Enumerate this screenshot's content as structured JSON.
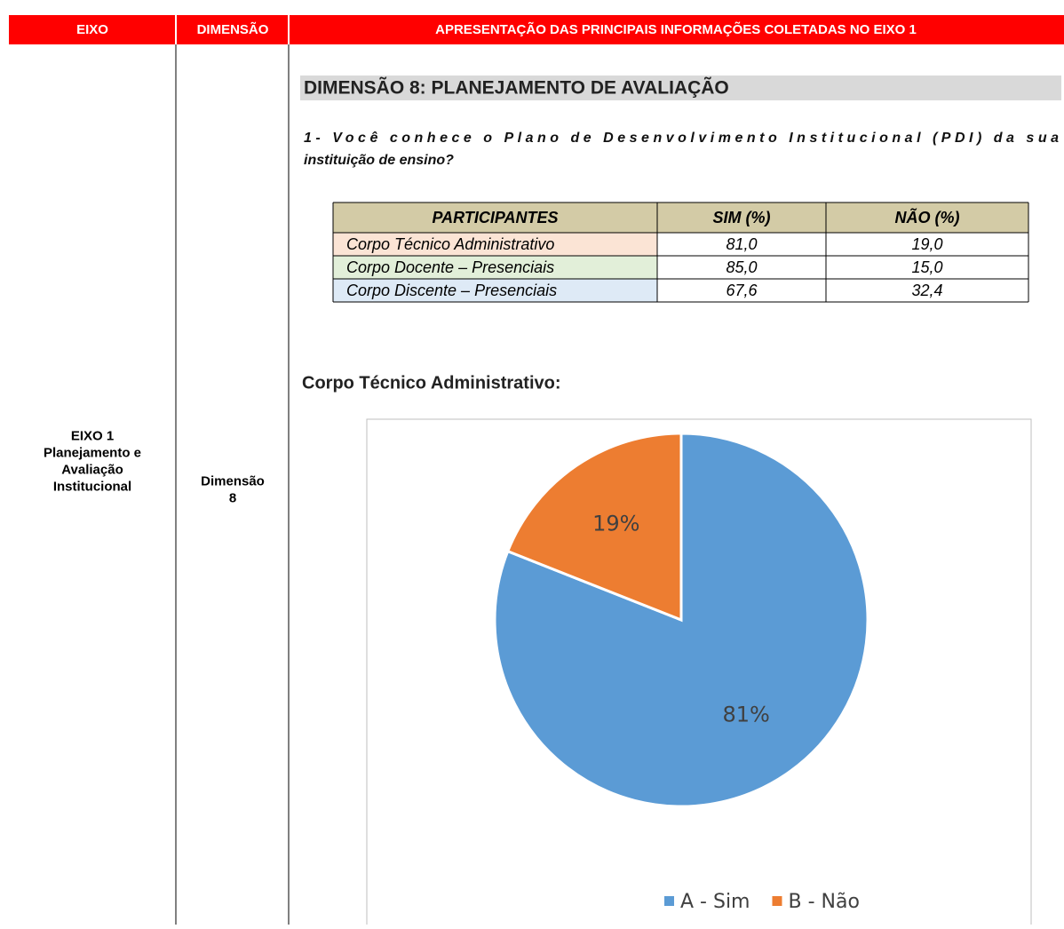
{
  "header": {
    "columns": [
      "EIXO",
      "DIMENSÃO",
      "APRESENTAÇÃO DAS PRINCIPAIS INFORMAÇÕES COLETADAS NO EIXO 1"
    ]
  },
  "eixo": {
    "lines": [
      "EIXO 1",
      "Planejamento e",
      "Avaliação",
      "Institucional"
    ]
  },
  "dimensao": {
    "lines": [
      "Dimensão",
      "8"
    ]
  },
  "section": {
    "heading": "DIMENSÃO 8: PLANEJAMENTO DE AVALIAÇÃO",
    "question": [
      "1- Você conhece o Plano de Desenvolvimento Institucional (PDI) da sua",
      "instituição de ensino?"
    ]
  },
  "table": {
    "header": [
      "PARTICIPANTES",
      "SIM (%)",
      "NÃO (%)"
    ],
    "rows": [
      [
        "Corpo Técnico Administrativo",
        "81,0",
        "19,0"
      ],
      [
        "Corpo Docente – Presenciais",
        "85,0",
        "15,0"
      ],
      [
        "Corpo Discente – Presenciais",
        "67,6",
        "32,4"
      ]
    ]
  },
  "chart_heading": "Corpo Técnico Administrativo:",
  "chart_data": {
    "type": "pie",
    "categories": [
      "A - Sim",
      "B - Não"
    ],
    "values": [
      81,
      19
    ],
    "value_labels": [
      "81%",
      "19%"
    ],
    "colors": [
      "#5b9bd5",
      "#ed7d31"
    ],
    "legend": "bottom"
  }
}
